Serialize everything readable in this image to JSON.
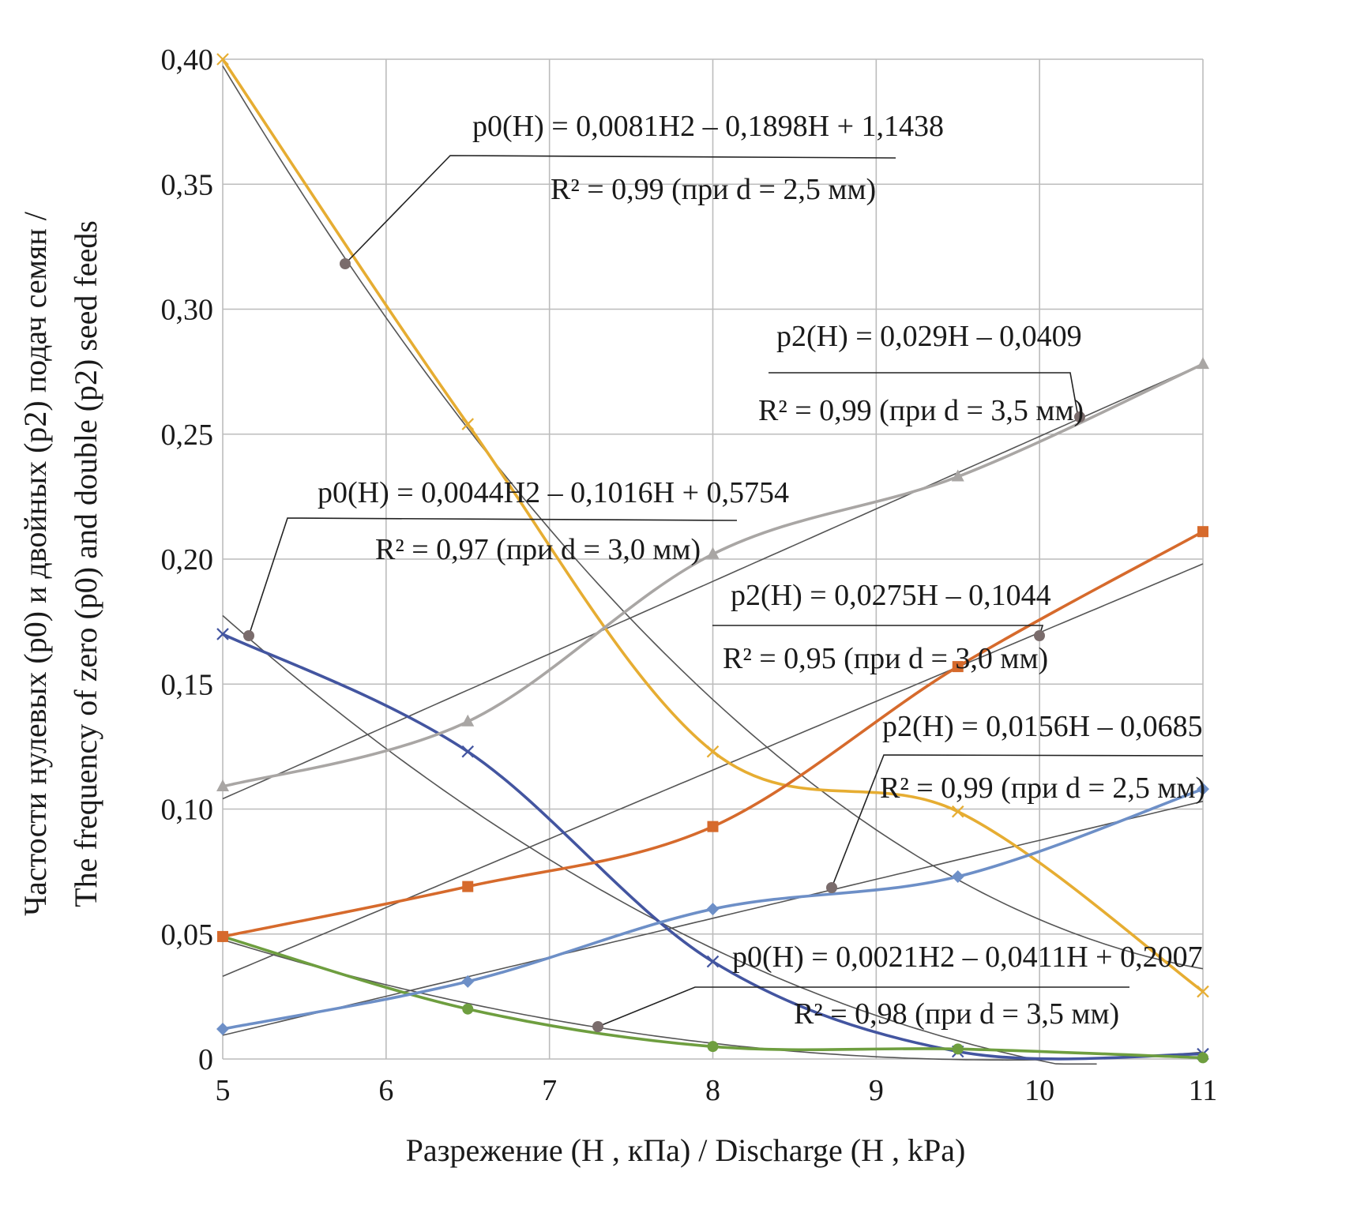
{
  "chart_data": {
    "type": "line",
    "title": "",
    "xlabel": "Разрежение (H , кПа) / Discharge (H , kPa)",
    "ylabel_line1": "Частости нулевых (p0) и двойных (p2) подач семян /",
    "ylabel_line2": "The frequency of zero (p0) and double (p2) seed feeds",
    "xlim": [
      5,
      11
    ],
    "ylim": [
      0,
      0.4
    ],
    "x_ticks": [
      5,
      6,
      7,
      8,
      9,
      10,
      11
    ],
    "x_tick_labels": [
      "5",
      "6",
      "7",
      "8",
      "9",
      "10",
      "11"
    ],
    "y_ticks": [
      0,
      0.05,
      0.1,
      0.15,
      0.2,
      0.25,
      0.3,
      0.35,
      0.4
    ],
    "y_tick_labels": [
      "0",
      "0,05",
      "0,10",
      "0,15",
      "0,20",
      "0,25",
      "0,30",
      "0,35",
      "0,40"
    ],
    "grid": true,
    "x": [
      5,
      6.5,
      8,
      9.5,
      11
    ],
    "series": [
      {
        "id": "p0_d25",
        "color": "#e6ad32",
        "marker": "x",
        "values": [
          0.4,
          0.254,
          0.123,
          0.099,
          0.027
        ]
      },
      {
        "id": "p0_d30",
        "color": "#4355a0",
        "marker": "x",
        "values": [
          0.17,
          0.123,
          0.039,
          0.003,
          0.002
        ]
      },
      {
        "id": "p0_d35",
        "color": "#6e9e3f",
        "marker": "circle",
        "values": [
          0.049,
          0.02,
          0.005,
          0.004,
          0.0005
        ]
      },
      {
        "id": "p2_d25",
        "color": "#6d8fc7",
        "marker": "diamond",
        "values": [
          0.012,
          0.031,
          0.06,
          0.073,
          0.108
        ]
      },
      {
        "id": "p2_d30",
        "color": "#d66a2c",
        "marker": "square",
        "values": [
          0.049,
          0.069,
          0.093,
          0.157,
          0.211
        ]
      },
      {
        "id": "p2_d35",
        "color": "#a9a6a4",
        "marker": "triangle",
        "values": [
          0.109,
          0.135,
          0.202,
          0.233,
          0.278
        ]
      }
    ],
    "trendlines": [
      {
        "series": "p0_d25",
        "kind": "poly2",
        "coef": [
          0.0081,
          -0.1898,
          1.1438
        ]
      },
      {
        "series": "p0_d30",
        "kind": "poly2",
        "coef": [
          0.0044,
          -0.1016,
          0.5754
        ]
      },
      {
        "series": "p0_d35",
        "kind": "poly2",
        "coef": [
          0.0021,
          -0.0411,
          0.2007
        ]
      },
      {
        "series": "p2_d25",
        "kind": "linear",
        "coef": [
          0.0156,
          -0.0685
        ]
      },
      {
        "series": "p2_d30",
        "kind": "linear",
        "coef": [
          0.0275,
          -0.1044
        ]
      },
      {
        "series": "p2_d35",
        "kind": "linear",
        "coef": [
          0.029,
          -0.0409
        ]
      }
    ],
    "annotations": [
      {
        "id": "a1",
        "equation": "p0(H) = 0,0081H2 – 0,1898H + 1,1438",
        "r2": "R² = 0,99 (при d = 2,5 мм)"
      },
      {
        "id": "a2",
        "equation": "p2(H) = 0,029H – 0,0409",
        "r2": "R² = 0,99 (при d = 3,5 мм)"
      },
      {
        "id": "a3",
        "equation": "p0(H) = 0,0044H2 – 0,1016H + 0,5754",
        "r2": "R² = 0,97 (при d = 3,0 мм)"
      },
      {
        "id": "a4",
        "equation": "p2(H) = 0,0275H – 0,1044",
        "r2": "R² = 0,95  (при d = 3,0 мм)"
      },
      {
        "id": "a5",
        "equation": "p2(H) = 0,0156H – 0,0685",
        "r2": "R² = 0,99  (при d = 2,5 мм)"
      },
      {
        "id": "a6",
        "equation": "p0(H) = 0,0021H2 – 0,0411H + 0,2007",
        "r2": "R² = 0,98  (при d = 3,5 мм)"
      }
    ]
  }
}
